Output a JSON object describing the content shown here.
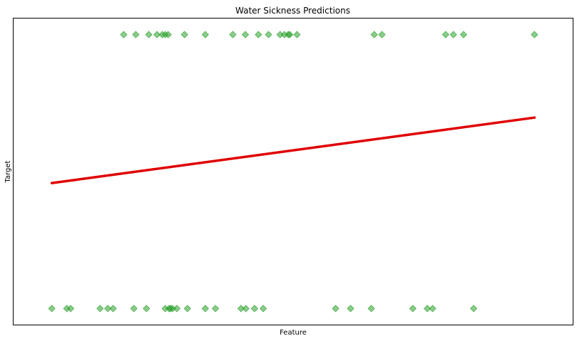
{
  "chart_data": {
    "type": "scatter",
    "title": "Water Sickness Predictions",
    "xlabel": "Feature",
    "ylabel": "Target",
    "xlim": [
      -0.08,
      1.08
    ],
    "ylim": [
      -0.06,
      1.06
    ],
    "show_ticks": false,
    "grid": false,
    "colors": {
      "points": "#2ca02c",
      "regression": "#e00000",
      "frame": "#000000"
    },
    "series": [
      {
        "kind": "points",
        "marker": "diamond",
        "points": [
          {
            "x": 0.149,
            "y": 1
          },
          {
            "x": 0.174,
            "y": 1
          },
          {
            "x": 0.201,
            "y": 1
          },
          {
            "x": 0.218,
            "y": 1
          },
          {
            "x": 0.229,
            "y": 1
          },
          {
            "x": 0.235,
            "y": 1
          },
          {
            "x": 0.241,
            "y": 1
          },
          {
            "x": 0.275,
            "y": 1
          },
          {
            "x": 0.318,
            "y": 1
          },
          {
            "x": 0.375,
            "y": 1
          },
          {
            "x": 0.401,
            "y": 1
          },
          {
            "x": 0.428,
            "y": 1
          },
          {
            "x": 0.449,
            "y": 1
          },
          {
            "x": 0.473,
            "y": 1
          },
          {
            "x": 0.482,
            "y": 1
          },
          {
            "x": 0.49,
            "y": 1
          },
          {
            "x": 0.493,
            "y": 1
          },
          {
            "x": 0.508,
            "y": 1
          },
          {
            "x": 0.668,
            "y": 1
          },
          {
            "x": 0.684,
            "y": 1
          },
          {
            "x": 0.816,
            "y": 1
          },
          {
            "x": 0.832,
            "y": 1
          },
          {
            "x": 0.853,
            "y": 1
          },
          {
            "x": 1.0,
            "y": 1
          },
          {
            "x": 0.0,
            "y": 0
          },
          {
            "x": 0.031,
            "y": 0
          },
          {
            "x": 0.039,
            "y": 0
          },
          {
            "x": 0.1,
            "y": 0
          },
          {
            "x": 0.116,
            "y": 0
          },
          {
            "x": 0.127,
            "y": 0
          },
          {
            "x": 0.17,
            "y": 0
          },
          {
            "x": 0.196,
            "y": 0
          },
          {
            "x": 0.235,
            "y": 0
          },
          {
            "x": 0.243,
            "y": 0
          },
          {
            "x": 0.246,
            "y": 0
          },
          {
            "x": 0.25,
            "y": 0
          },
          {
            "x": 0.259,
            "y": 0
          },
          {
            "x": 0.281,
            "y": 0
          },
          {
            "x": 0.318,
            "y": 0
          },
          {
            "x": 0.339,
            "y": 0
          },
          {
            "x": 0.392,
            "y": 0
          },
          {
            "x": 0.402,
            "y": 0
          },
          {
            "x": 0.42,
            "y": 0
          },
          {
            "x": 0.438,
            "y": 0
          },
          {
            "x": 0.588,
            "y": 0
          },
          {
            "x": 0.619,
            "y": 0
          },
          {
            "x": 0.662,
            "y": 0
          },
          {
            "x": 0.748,
            "y": 0
          },
          {
            "x": 0.778,
            "y": 0
          },
          {
            "x": 0.789,
            "y": 0
          },
          {
            "x": 0.874,
            "y": 0
          }
        ]
      },
      {
        "kind": "line",
        "points": [
          {
            "x": 0.0,
            "y": 0.458
          },
          {
            "x": 1.0,
            "y": 0.697
          }
        ]
      }
    ]
  }
}
